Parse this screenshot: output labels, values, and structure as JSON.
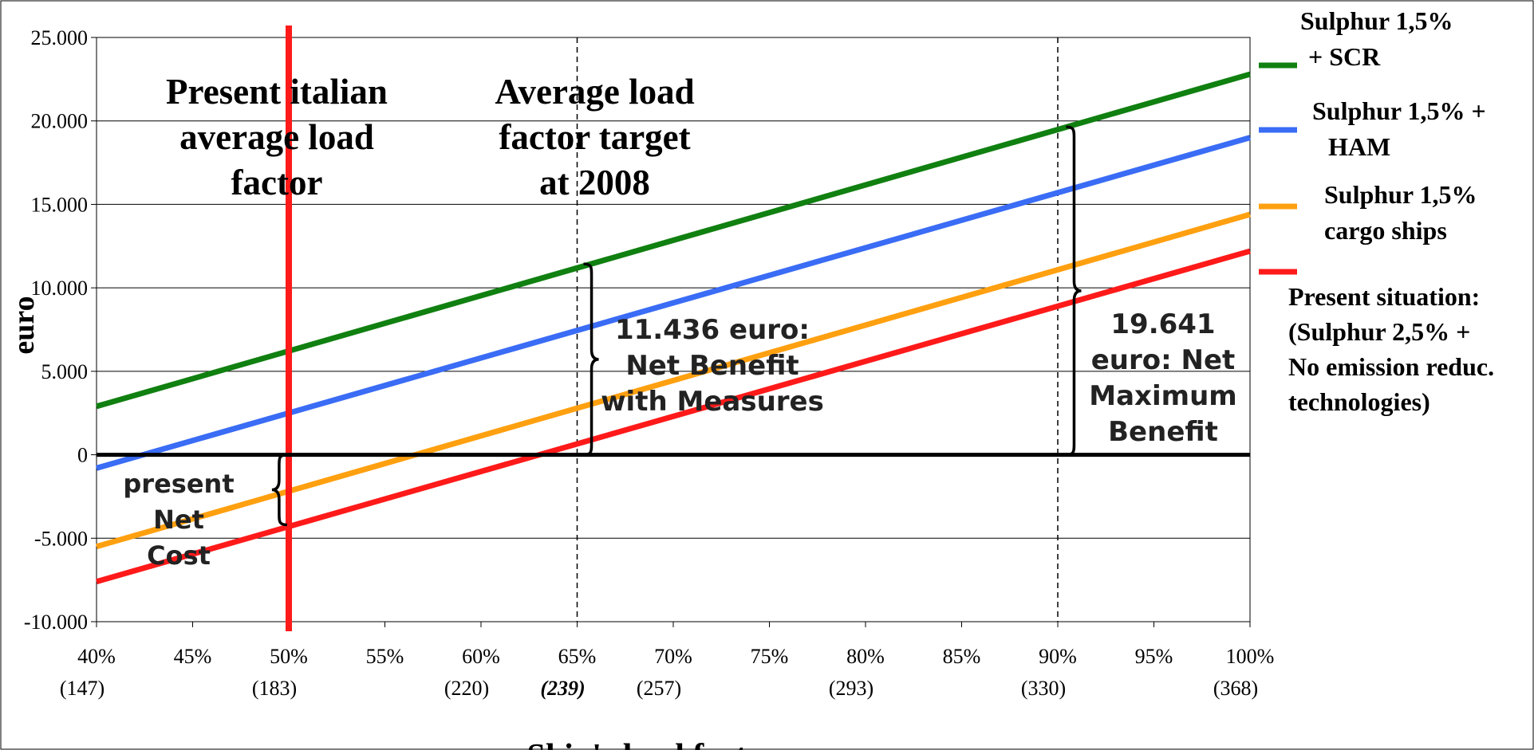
{
  "chart_data": {
    "type": "line",
    "title": "",
    "xlabel": "Ship's load factor",
    "ylabel": "euro",
    "xlim": [
      40,
      100
    ],
    "ylim": [
      -10000,
      25000
    ],
    "grid": "horizontal",
    "x_ticks": [
      {
        "value": 40,
        "label": "40%",
        "sub": "(147)"
      },
      {
        "value": 45,
        "label": "45%",
        "sub": ""
      },
      {
        "value": 50,
        "label": "50%",
        "sub": "(183)"
      },
      {
        "value": 55,
        "label": "55%",
        "sub": ""
      },
      {
        "value": 60,
        "label": "60%",
        "sub": "(220)"
      },
      {
        "value": 65,
        "label": "65%",
        "sub": "(239)",
        "emphasis": true
      },
      {
        "value": 70,
        "label": "70%",
        "sub": "(257)"
      },
      {
        "value": 75,
        "label": "75%",
        "sub": ""
      },
      {
        "value": 80,
        "label": "80%",
        "sub": "(293)"
      },
      {
        "value": 85,
        "label": "85%",
        "sub": ""
      },
      {
        "value": 90,
        "label": "90%",
        "sub": "(330)"
      },
      {
        "value": 95,
        "label": "95%",
        "sub": ""
      },
      {
        "value": 100,
        "label": "100%",
        "sub": "(368)"
      }
    ],
    "y_ticks": [
      {
        "value": 25000,
        "label": "25.000"
      },
      {
        "value": 20000,
        "label": "20.000"
      },
      {
        "value": 15000,
        "label": "15.000"
      },
      {
        "value": 10000,
        "label": "10.000"
      },
      {
        "value": 5000,
        "label": "5.000"
      },
      {
        "value": 0,
        "label": "0"
      },
      {
        "value": -5000,
        "label": "-5.000"
      },
      {
        "value": -10000,
        "label": "-10.000"
      }
    ],
    "x": [
      40,
      100
    ],
    "series": [
      {
        "name": "Sulphur 1,5% + SCR",
        "legend_lines": [
          "Sulphur 1,5%",
          "+ SCR"
        ],
        "color": "#108010",
        "values": [
          2900,
          22800
        ]
      },
      {
        "name": "Sulphur 1,5% + HAM",
        "legend_lines": [
          "Sulphur 1,5% +",
          "HAM"
        ],
        "color": "#3a6cf5",
        "values": [
          -800,
          19000
        ]
      },
      {
        "name": "Sulphur 1,5% cargo ships",
        "legend_lines": [
          "Sulphur 1,5%",
          "cargo ships"
        ],
        "color": "#ffa010",
        "values": [
          -5500,
          14400
        ]
      },
      {
        "name": "Present situation: (Sulphur 2,5% + No emission reduc. technologies)",
        "legend_lines": [
          "Present situation:",
          "(Sulphur 2,5% +",
          "No emission reduc.",
          "technologies)"
        ],
        "color": "#ff1a1a",
        "values": [
          -7600,
          12200
        ]
      }
    ],
    "reference_lines": [
      {
        "x": 50,
        "style": "solid",
        "color": "#ff1a1a",
        "label_lines": [
          "Present italian",
          "average load",
          "factor"
        ]
      },
      {
        "x": 65,
        "style": "dashed",
        "color": "#000000",
        "label_lines": [
          "Average load",
          "factor target",
          "at 2008"
        ]
      },
      {
        "x": 90,
        "style": "dashed",
        "color": "#000000",
        "label_lines": []
      }
    ],
    "annotations": [
      {
        "id": "present-net-cost",
        "x": 49,
        "y_from": -4200,
        "y_to": 0,
        "side": "left",
        "text_lines": [
          "present",
          "Net",
          "Cost"
        ]
      },
      {
        "id": "net-benefit-with-measures",
        "x": 65.5,
        "y_from": 0,
        "y_to": 11436,
        "side": "right",
        "text_lines": [
          "11.436 euro:",
          "Net Benefit",
          "with Measures"
        ]
      },
      {
        "id": "net-maximum-benefit",
        "x": 90.6,
        "y_from": 0,
        "y_to": 19641,
        "side": "right",
        "text_lines": [
          "19.641",
          "euro: Net",
          "Maximum",
          "Benefit"
        ]
      }
    ]
  }
}
